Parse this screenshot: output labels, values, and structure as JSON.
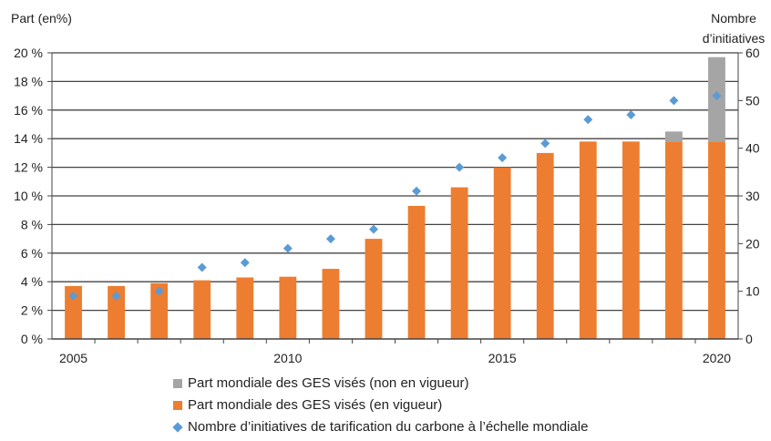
{
  "chart_data": {
    "type": "bar",
    "categories": [
      "2005",
      "2006",
      "2007",
      "2008",
      "2009",
      "2010",
      "2011",
      "2012",
      "2013",
      "2014",
      "2015",
      "2016",
      "2017",
      "2018",
      "2019",
      "2020"
    ],
    "x_tick_labels": [
      "2005",
      "2010",
      "2015",
      "2020"
    ],
    "ylabel": "Part (en%)",
    "y2label": "Nombre d’initiatives",
    "ylim": [
      0,
      20
    ],
    "y2lim": [
      0,
      60
    ],
    "y_ticks": [
      "0 %",
      "2 %",
      "4 %",
      "6 %",
      "8 %",
      "10 %",
      "12 %",
      "14 %",
      "16 %",
      "18 %",
      "20 %"
    ],
    "y2_ticks": [
      "0",
      "10",
      "20",
      "30",
      "40",
      "50",
      "60"
    ],
    "grid": true,
    "legend_position": "bottom",
    "series": [
      {
        "name": "Part mondiale des GES visés (non en vigueur)",
        "type": "bar-stacked",
        "color": "#A5A5A5",
        "values": [
          0,
          0,
          0,
          0,
          0,
          0,
          0,
          0,
          0,
          0,
          0,
          0,
          0,
          0,
          0.7,
          5.9
        ]
      },
      {
        "name": "Part mondiale des GES visés (en vigueur)",
        "type": "bar-stacked",
        "color": "#ED7D31",
        "values": [
          3.7,
          3.7,
          3.9,
          4.1,
          4.3,
          4.35,
          4.9,
          7.0,
          9.3,
          10.6,
          12.0,
          13.0,
          13.8,
          13.8,
          13.8,
          13.8
        ]
      },
      {
        "name": "Nombre d’initiatives de tarification du carbone à l’échelle mondiale",
        "type": "scatter",
        "axis": "right",
        "color": "#5B9BD5",
        "values": [
          9,
          9,
          10,
          15,
          16,
          19,
          21,
          23,
          31,
          36,
          38,
          41,
          46,
          47,
          50,
          51
        ]
      }
    ]
  }
}
